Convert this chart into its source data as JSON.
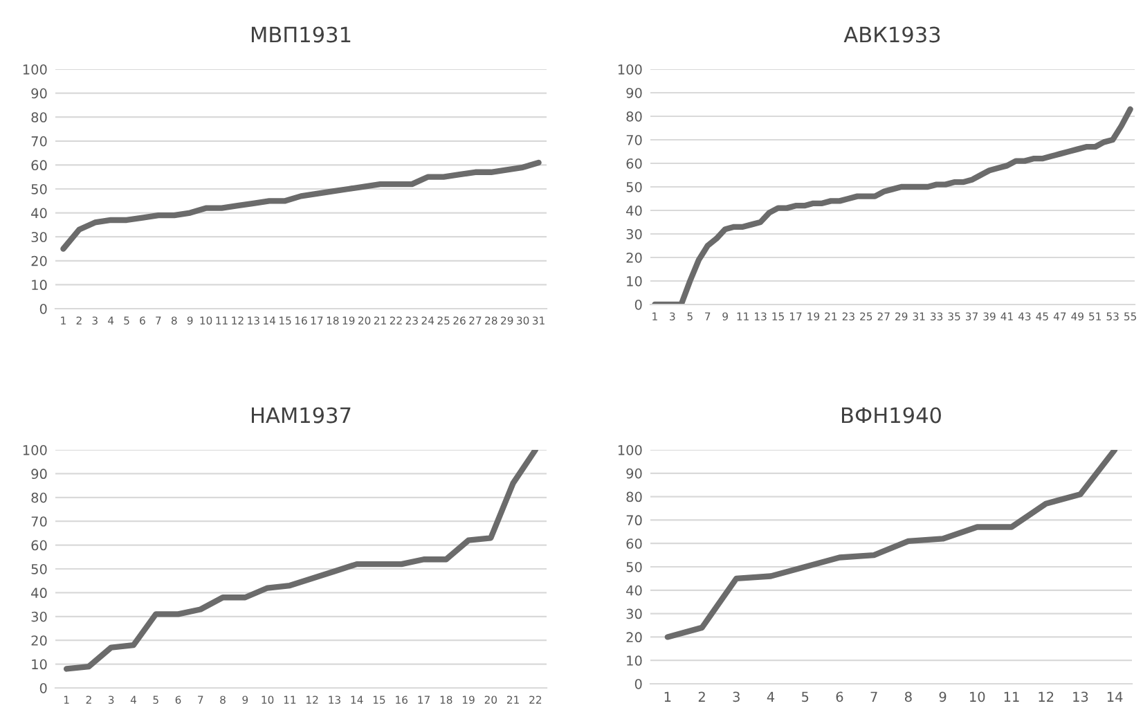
{
  "chart_data": [
    {
      "type": "line",
      "title": "МВП1931",
      "color": "#6b6b6b",
      "grid": "y",
      "ylim": [
        0,
        100
      ],
      "yticks": [
        0,
        10,
        20,
        30,
        40,
        50,
        60,
        70,
        80,
        90,
        100
      ],
      "categories": [
        "1",
        "2",
        "3",
        "4",
        "5",
        "6",
        "7",
        "8",
        "9",
        "10",
        "11",
        "12",
        "13",
        "14",
        "15",
        "16",
        "17",
        "18",
        "19",
        "20",
        "21",
        "22",
        "23",
        "24",
        "25",
        "26",
        "27",
        "28",
        "29",
        "30",
        "31"
      ],
      "values": [
        25,
        33,
        36,
        37,
        37,
        38,
        39,
        39,
        40,
        42,
        42,
        43,
        44,
        45,
        45,
        47,
        48,
        49,
        50,
        51,
        52,
        52,
        52,
        55,
        55,
        56,
        57,
        57,
        58,
        59,
        61
      ]
    },
    {
      "type": "line",
      "title": "АВК1933",
      "color": "#6b6b6b",
      "grid": "y",
      "ylim": [
        0,
        100
      ],
      "yticks": [
        0,
        10,
        20,
        30,
        40,
        50,
        60,
        70,
        80,
        90,
        100
      ],
      "categories": [
        "1",
        null,
        "3",
        null,
        "5",
        null,
        "7",
        null,
        "9",
        null,
        "11",
        null,
        "13",
        null,
        "15",
        null,
        "17",
        null,
        "19",
        null,
        "21",
        null,
        "23",
        null,
        "25",
        null,
        "27",
        null,
        "29",
        null,
        "31",
        null,
        "33",
        null,
        "35",
        null,
        "37",
        null,
        "39",
        null,
        "41",
        null,
        "43",
        null,
        "45",
        null,
        "47",
        null,
        "49",
        null,
        "51",
        null,
        "53",
        null,
        "55"
      ],
      "values": [
        0,
        0,
        0,
        0,
        10,
        19,
        25,
        28,
        32,
        33,
        33,
        34,
        35,
        39,
        41,
        41,
        42,
        42,
        43,
        43,
        44,
        44,
        45,
        46,
        46,
        46,
        48,
        49,
        50,
        50,
        50,
        50,
        51,
        51,
        52,
        52,
        53,
        55,
        57,
        58,
        59,
        61,
        61,
        62,
        62,
        63,
        64,
        65,
        66,
        67,
        67,
        69,
        70,
        76,
        83
      ]
    },
    {
      "type": "line",
      "title": "НАМ1937",
      "color": "#6b6b6b",
      "grid": "y",
      "ylim": [
        0,
        100
      ],
      "yticks": [
        0,
        10,
        20,
        30,
        40,
        50,
        60,
        70,
        80,
        90,
        100
      ],
      "categories": [
        "1",
        "2",
        "3",
        "4",
        "5",
        "6",
        "7",
        "8",
        "9",
        "10",
        "11",
        "12",
        "13",
        "14",
        "15",
        "16",
        "17",
        "18",
        "19",
        "20",
        "21",
        "22"
      ],
      "values": [
        8,
        9,
        17,
        18,
        31,
        31,
        33,
        38,
        38,
        42,
        43,
        46,
        49,
        52,
        52,
        52,
        54,
        54,
        62,
        63,
        86,
        100
      ]
    },
    {
      "type": "line",
      "title": "ВФН1940",
      "color": "#6b6b6b",
      "grid": "y",
      "ylim": [
        0,
        100
      ],
      "yticks": [
        0,
        10,
        20,
        30,
        40,
        50,
        60,
        70,
        80,
        90,
        100
      ],
      "categories": [
        "1",
        "2",
        "3",
        "4",
        "5",
        "6",
        "7",
        "8",
        "9",
        "10",
        "11",
        "12",
        "13",
        "14"
      ],
      "values": [
        20,
        24,
        45,
        46,
        50,
        54,
        55,
        61,
        62,
        67,
        67,
        77,
        81,
        100
      ]
    }
  ]
}
